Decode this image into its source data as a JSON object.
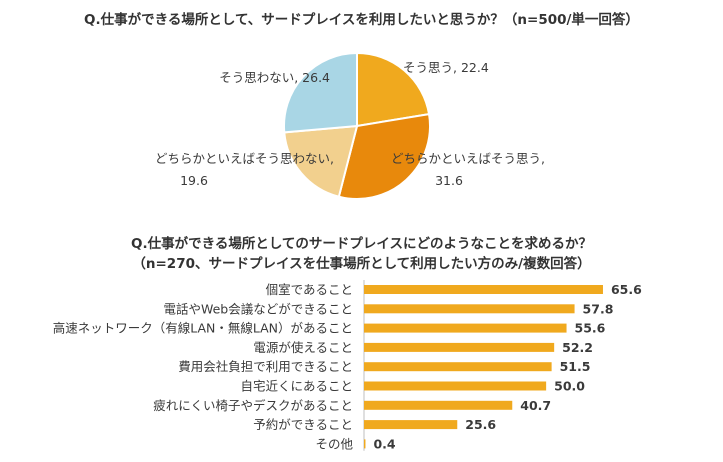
{
  "colors": {
    "pie_1": "#F0A91E",
    "pie_2": "#E8890C",
    "pie_3": "#F2D08E",
    "pie_4": "#A9D6E5",
    "bar": "#F0A91E",
    "text": "#3A3A3A"
  },
  "chart_data": [
    {
      "type": "pie",
      "title": "Q.仕事ができる場所として、サードプレイスを利用したいと思うか？（n=500/単一回答）",
      "slices": [
        {
          "label": "そう思う",
          "value": 22.4,
          "color_key": "pie_1"
        },
        {
          "label": "どちらかといえばそう思う",
          "value": 31.6,
          "color_key": "pie_2"
        },
        {
          "label": "どちらかといえばそう思わない",
          "value": 19.6,
          "color_key": "pie_3"
        },
        {
          "label": "そう思わない",
          "value": 26.4,
          "color_key": "pie_4"
        }
      ]
    },
    {
      "type": "bar",
      "orientation": "horizontal",
      "title": "Q.仕事ができる場所としてのサードプレイスにどのようなことを求めるか？",
      "subtitle": "（n=270、サードプレイスを仕事場所として利用したい方のみ/複数回答）",
      "categories": [
        "個室であること",
        "電話やWeb会議などができること",
        "高速ネットワーク（有線LAN・無線LAN）があること",
        "電源が使えること",
        "費用会社負担で利用できること",
        "自宅近くにあること",
        "疲れにくい椅子やデスクがあること",
        "予約ができること",
        "その他"
      ],
      "values": [
        65.6,
        57.8,
        55.6,
        52.2,
        51.5,
        50.0,
        40.7,
        25.6,
        0.4
      ],
      "value_labels": [
        "65.6",
        "57.8",
        "55.6",
        "52.2",
        "51.5",
        "50.0",
        "40.7",
        "25.6",
        "0.4"
      ],
      "xlim": [
        0,
        70
      ]
    }
  ]
}
